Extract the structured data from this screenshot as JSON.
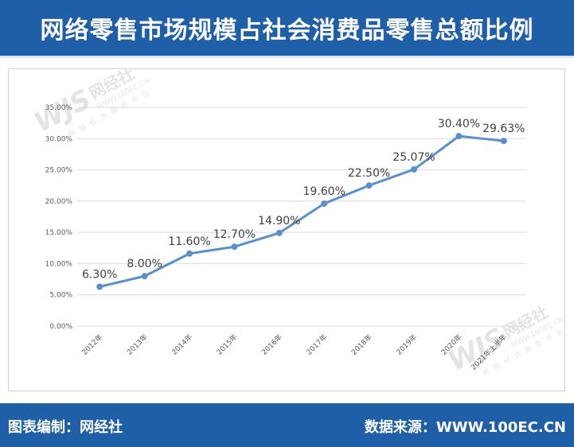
{
  "header": {
    "title": "网络零售市场规模占社会消费品零售总额比例"
  },
  "footer": {
    "left_label": "图表编制：网经社",
    "right_label": "数据来源：WWW.100EC.CN"
  },
  "watermark": {
    "logo": "WJS",
    "name": "网经社",
    "url": "WWW.100EC.CN",
    "slogan": "网络经济服务平台"
  },
  "colors": {
    "brand": "#1f5fa8",
    "line": "#5b8fc9",
    "grid": "#d9d9d9",
    "axis_text": "#595959"
  },
  "chart_data": {
    "type": "line",
    "categories": [
      "2012年",
      "2013年",
      "2014年",
      "2015年",
      "2016年",
      "2017年",
      "2018年",
      "2019年",
      "2020年",
      "2021年上半年"
    ],
    "series": [
      {
        "values": [
          6.3,
          8.0,
          11.6,
          12.7,
          14.9,
          19.6,
          22.5,
          25.07,
          30.4,
          29.63
        ]
      }
    ],
    "data_labels": [
      "6.30%",
      "8.00%",
      "11.60%",
      "12.70%",
      "14.90%",
      "19.60%",
      "22.50%",
      "25.07%",
      "30.40%",
      "29.63%"
    ],
    "y_ticks": [
      0,
      5,
      10,
      15,
      20,
      25,
      30,
      35
    ],
    "y_tick_labels": [
      "0.00%",
      "5.00%",
      "10.00%",
      "15.00%",
      "20.00%",
      "25.00%",
      "30.00%",
      "35.00%"
    ],
    "ylim": [
      0,
      35
    ],
    "grid": true,
    "legend": "none"
  }
}
